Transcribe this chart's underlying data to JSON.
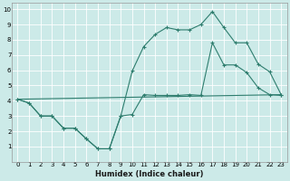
{
  "xlabel": "Humidex (Indice chaleur)",
  "bg_color": "#cceae8",
  "line_color": "#2e7d6e",
  "grid_color": "#ffffff",
  "xlim": [
    -0.5,
    23.5
  ],
  "ylim": [
    0,
    10.4
  ],
  "xticks": [
    0,
    1,
    2,
    3,
    4,
    5,
    6,
    7,
    8,
    9,
    10,
    11,
    12,
    13,
    14,
    15,
    16,
    17,
    18,
    19,
    20,
    21,
    22,
    23
  ],
  "yticks": [
    1,
    2,
    3,
    4,
    5,
    6,
    7,
    8,
    9,
    10
  ],
  "line1_x": [
    0,
    1,
    2,
    3,
    4,
    5,
    6,
    7,
    8,
    9,
    10,
    11,
    12,
    13,
    14,
    15,
    16,
    17,
    18,
    19,
    20,
    21,
    22,
    23
  ],
  "line1_y": [
    4.1,
    3.85,
    3.0,
    3.0,
    2.2,
    2.2,
    1.5,
    0.85,
    0.85,
    3.0,
    3.1,
    4.4,
    4.35,
    4.35,
    4.35,
    4.4,
    4.35,
    7.8,
    6.35,
    6.35,
    5.85,
    4.85,
    4.4,
    4.35
  ],
  "line2_x": [
    0,
    1,
    2,
    3,
    4,
    5,
    6,
    7,
    8,
    9,
    10,
    11,
    12,
    13,
    14,
    15,
    16,
    17,
    18,
    19,
    20,
    21,
    22,
    23
  ],
  "line2_y": [
    4.1,
    3.85,
    3.0,
    3.0,
    2.2,
    2.2,
    1.5,
    0.85,
    0.85,
    3.0,
    5.95,
    7.55,
    8.35,
    8.8,
    8.65,
    8.65,
    9.0,
    9.85,
    8.8,
    7.8,
    7.8,
    6.4,
    5.9,
    4.4
  ],
  "line3_x": [
    0,
    23
  ],
  "line3_y": [
    4.1,
    4.4
  ]
}
